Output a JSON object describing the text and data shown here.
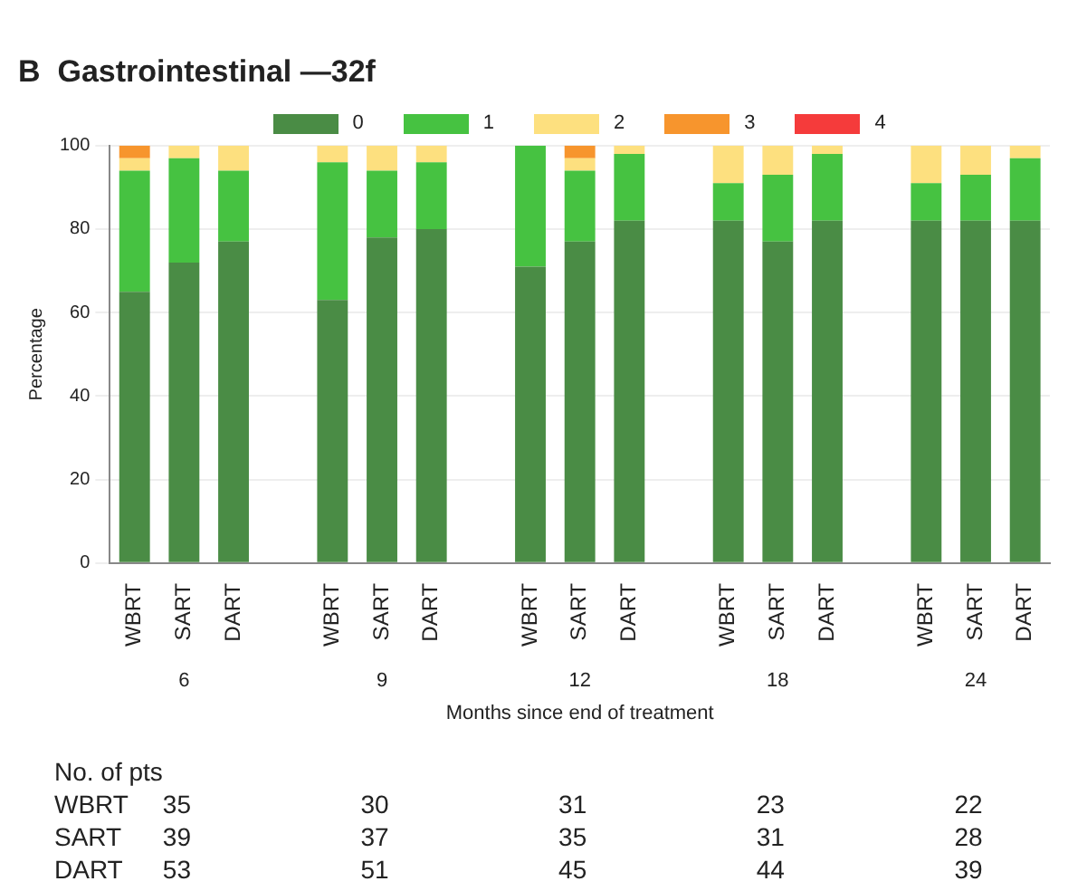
{
  "chart_data": {
    "type": "bar",
    "stacked": true,
    "title": "B  Gastrointestinal —32f",
    "xlabel": "Months since end of treatment",
    "ylabel": "Percentage",
    "categories": [
      "WBRT",
      "SART",
      "DART",
      null,
      "WBRT",
      "SART",
      "DART",
      null,
      "WBRT",
      "SART",
      "DART",
      null,
      "WBRT",
      "SART",
      "DART",
      null,
      "WBRT",
      "SART",
      "DART"
    ],
    "series": [
      {
        "name": "0",
        "color": "#4a8c45",
        "values": [
          65,
          72,
          77,
          null,
          63,
          78,
          80,
          null,
          71,
          77,
          82,
          null,
          82,
          77,
          82,
          null,
          82,
          82,
          82
        ]
      },
      {
        "name": "1",
        "color": "#46c241",
        "values": [
          29,
          25,
          17,
          null,
          33,
          16,
          16,
          null,
          29,
          17,
          16,
          null,
          9,
          16,
          16,
          null,
          9,
          11,
          15
        ]
      },
      {
        "name": "2",
        "color": "#fde07f",
        "values": [
          3,
          3,
          6,
          null,
          4,
          6,
          4,
          null,
          0,
          3,
          2,
          null,
          9,
          7,
          2,
          null,
          9,
          7,
          3
        ]
      },
      {
        "name": "3",
        "color": "#f7952d",
        "values": [
          3,
          0,
          0,
          null,
          0,
          0,
          0,
          null,
          0,
          3,
          0,
          null,
          0,
          0,
          0,
          null,
          0,
          0,
          0
        ]
      },
      {
        "name": "4",
        "color": "#f53b3b",
        "values": [
          0,
          0,
          0,
          null,
          0,
          0,
          0,
          null,
          0,
          0,
          0,
          null,
          0,
          0,
          0,
          null,
          0,
          0,
          0
        ]
      }
    ],
    "ylim": [
      0,
      100
    ],
    "yticks": [
      0,
      20,
      40,
      60,
      80,
      100
    ],
    "grid": "y",
    "legend": "top",
    "annotations": [
      "6",
      "9",
      "12",
      "18",
      "24",
      "No. of pts",
      "WBRT 35 30 31 23 22",
      "SART 39 37 35 31 28",
      "DART 53 51 45 44 39"
    ]
  }
}
